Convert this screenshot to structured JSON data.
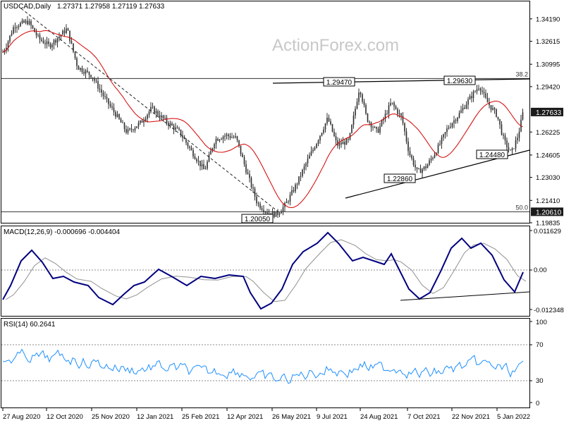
{
  "watermark": "ActionForex.com",
  "chart_data": [
    {
      "type": "candlestick",
      "title": "USDCAD,Daily",
      "ohlc": "1.27371 1.27958 1.27119 1.27633",
      "ylim": [
        1.19835,
        1.3542
      ],
      "y_ticks": [
        "1.34190",
        "1.32615",
        "1.30995",
        "1.29420",
        "1.27633",
        "1.26225",
        "1.24605",
        "1.23030",
        "1.21410",
        "1.19835"
      ],
      "x_ticks": [
        "27 Aug 2020",
        "12 Oct 2020",
        "25 Nov 2020",
        "12 Jan 2021",
        "25 Feb 2021",
        "12 Apr 2021",
        "26 May 2021",
        "9 Jul 2021",
        "24 Aug 2021",
        "7 Oct 2021",
        "22 Nov 2021",
        "5 Jan 2022"
      ],
      "current_price": "1.27633",
      "support_level": "1.20610",
      "fib_levels": [
        {
          "label": "38.2",
          "value": 1.2999
        },
        {
          "label": "50.0",
          "value": 1.2061
        }
      ],
      "annotations": [
        {
          "label": "1.20050",
          "value": 1.2005
        },
        {
          "label": "1.29470",
          "value": 1.2947
        },
        {
          "label": "1.22860",
          "value": 1.2286
        },
        {
          "label": "1.29630",
          "value": 1.2963
        },
        {
          "label": "1.24480",
          "value": 1.2448
        }
      ],
      "colors": {
        "candles": "#2d2d2d",
        "moving_average": "#d40000",
        "current_label_bg": "#1a1a1a",
        "support_label_bg": "#1a1a1a"
      }
    },
    {
      "type": "line",
      "title": "MACD(12,26,9) -0.000696 -0.004404",
      "y_ticks": [
        "0.011629",
        "0.00",
        "-0.012348"
      ],
      "colors": {
        "macd": "#000080",
        "signal": "#909090"
      }
    },
    {
      "type": "line",
      "title": "RSI(14) 60.2641",
      "y_ticks": [
        "100",
        "70",
        "30",
        "0"
      ],
      "colors": {
        "rsi": "#1e90ff"
      }
    }
  ]
}
